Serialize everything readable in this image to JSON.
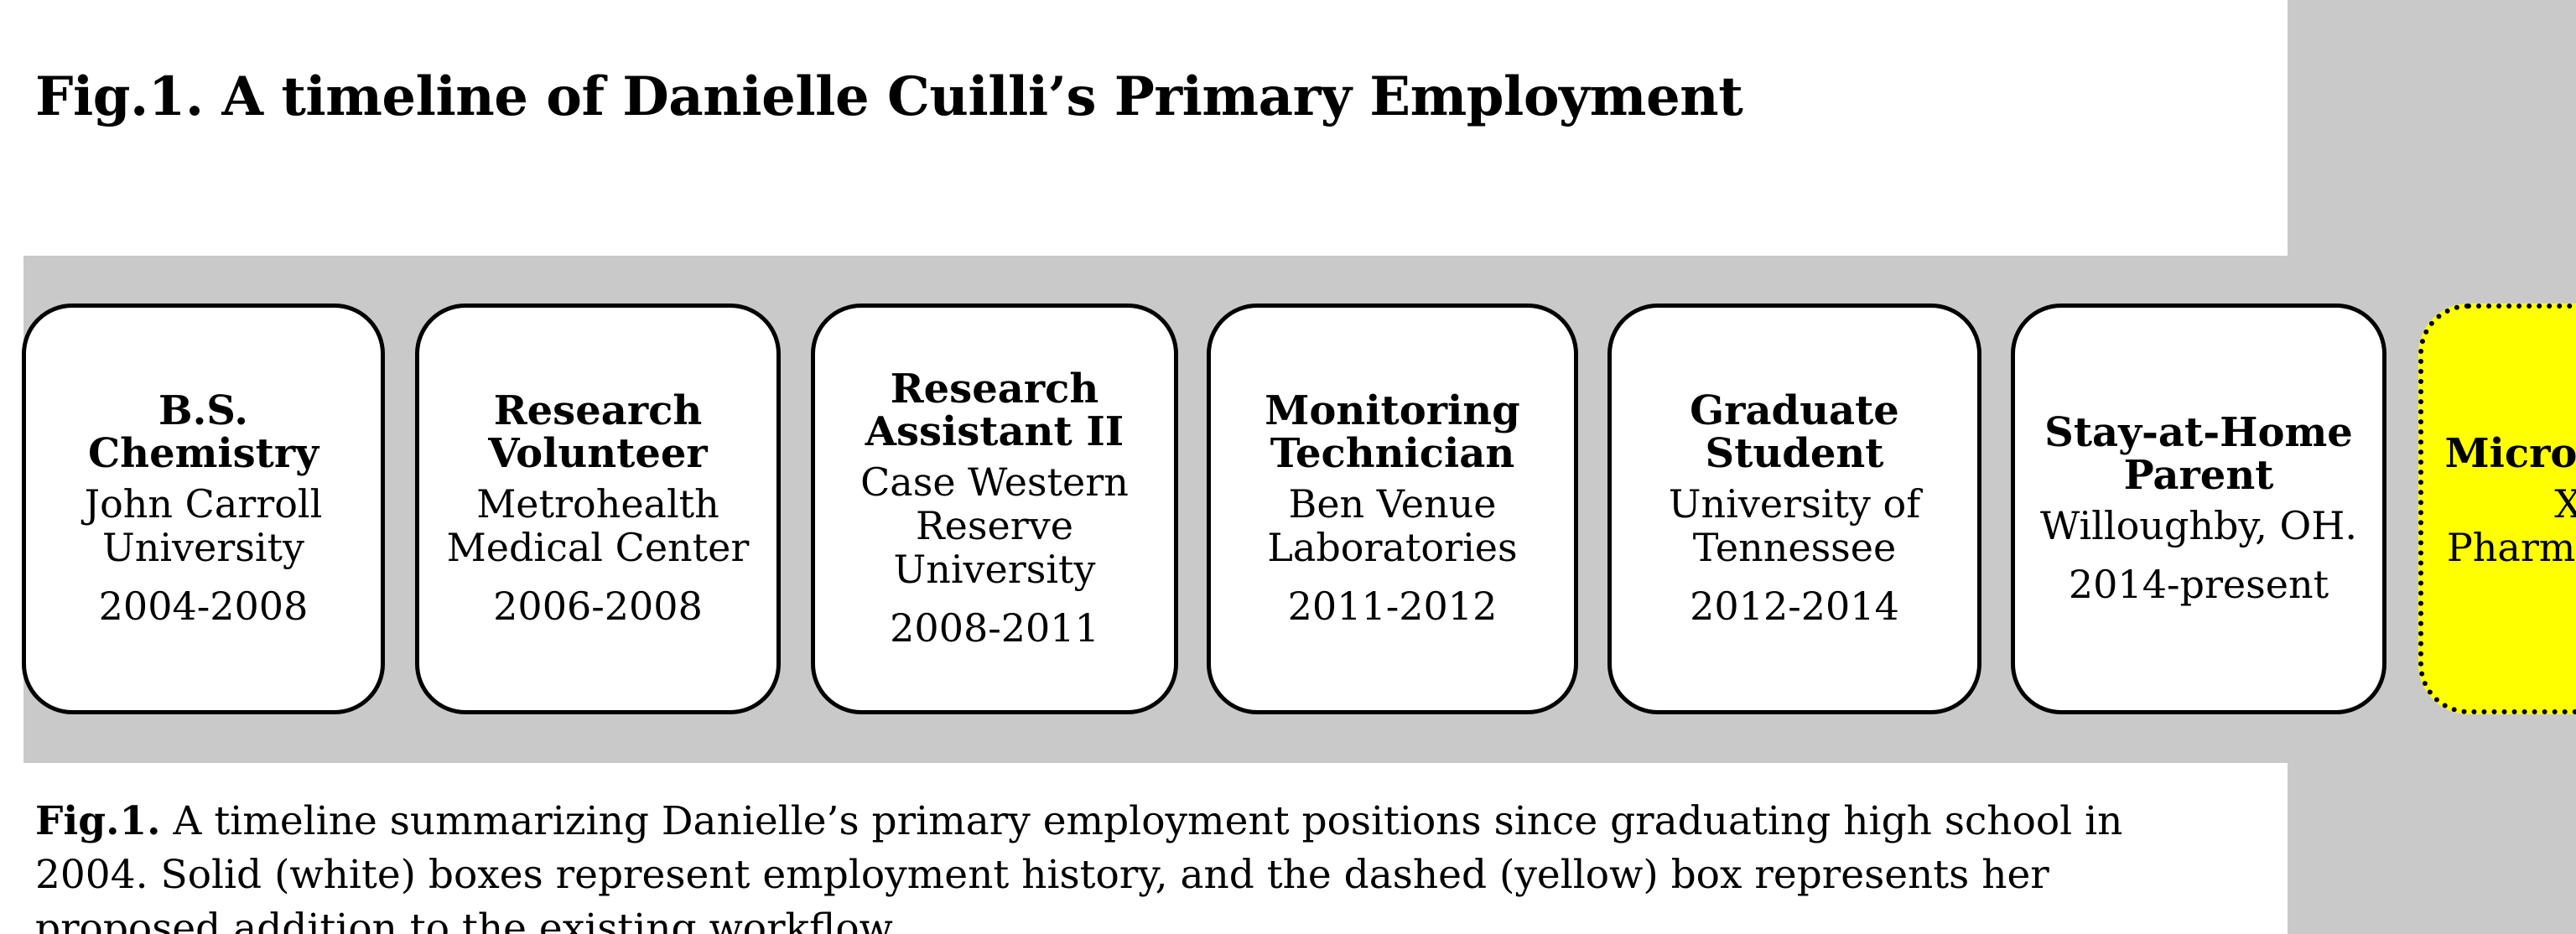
{
  "title": "Fig.1. A timeline of Danielle Cuilli’s Primary Employment",
  "colors": {
    "arrow": "#c9c9c9",
    "box_fill": "#ffffff",
    "proposed_fill": "#ffff00",
    "border": "#000000"
  },
  "timeline": [
    {
      "role": "B.S.\nChemistry",
      "org": "John Carroll\nUniversity",
      "dates": "2004-2008"
    },
    {
      "role": "Research\nVolunteer",
      "org": "Metrohealth\nMedical Center",
      "dates": "2006-2008"
    },
    {
      "role": "Research\nAssistant II",
      "org": "Case Western\nReserve\nUniversity",
      "dates": "2008-2011"
    },
    {
      "role": "Monitoring\nTechnician",
      "org": "Ben Venue\nLaboratories",
      "dates": "2011-2012"
    },
    {
      "role": "Graduate\nStudent",
      "org": "University of\nTennessee",
      "dates": "2012-2014"
    },
    {
      "role": "Stay-at-Home\nParent",
      "org": "Willoughby, OH.",
      "dates": "2014-present"
    },
    {
      "role": "Microbiologist",
      "org": "Xellia\nPharmaceuticals",
      "dates": ""
    }
  ],
  "caption": {
    "lead": "Fig.1.",
    "text": " A timeline summarizing Danielle’s primary employment positions since graduating high school in 2004.  Solid (white) boxes represent employment history, and the dashed (yellow) box represents her proposed addition to the existing workflow."
  }
}
